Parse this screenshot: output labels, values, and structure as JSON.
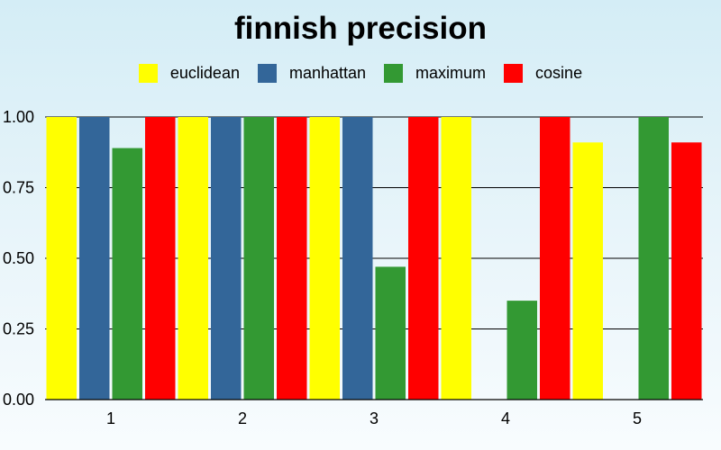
{
  "chart_data": {
    "type": "bar",
    "title": "finnish precision",
    "xlabel": "",
    "ylabel": "",
    "categories": [
      "1",
      "2",
      "3",
      "4",
      "5"
    ],
    "series": [
      {
        "name": "euclidean",
        "color": "#ffff00",
        "values": [
          1.0,
          1.0,
          1.0,
          1.0,
          0.91
        ]
      },
      {
        "name": "manhattan",
        "color": "#336699",
        "values": [
          1.0,
          1.0,
          1.0,
          0.0,
          0.0
        ]
      },
      {
        "name": "maximum",
        "color": "#339933",
        "values": [
          0.89,
          1.0,
          0.47,
          0.35,
          1.0
        ]
      },
      {
        "name": "cosine",
        "color": "#ff0000",
        "values": [
          1.0,
          1.0,
          1.0,
          1.0,
          0.91
        ]
      }
    ],
    "ylim": [
      0,
      1.0
    ],
    "yticks": [
      "0.00",
      "0.25",
      "0.50",
      "0.75",
      "1.00"
    ],
    "grid": true,
    "legend_position": "top"
  }
}
